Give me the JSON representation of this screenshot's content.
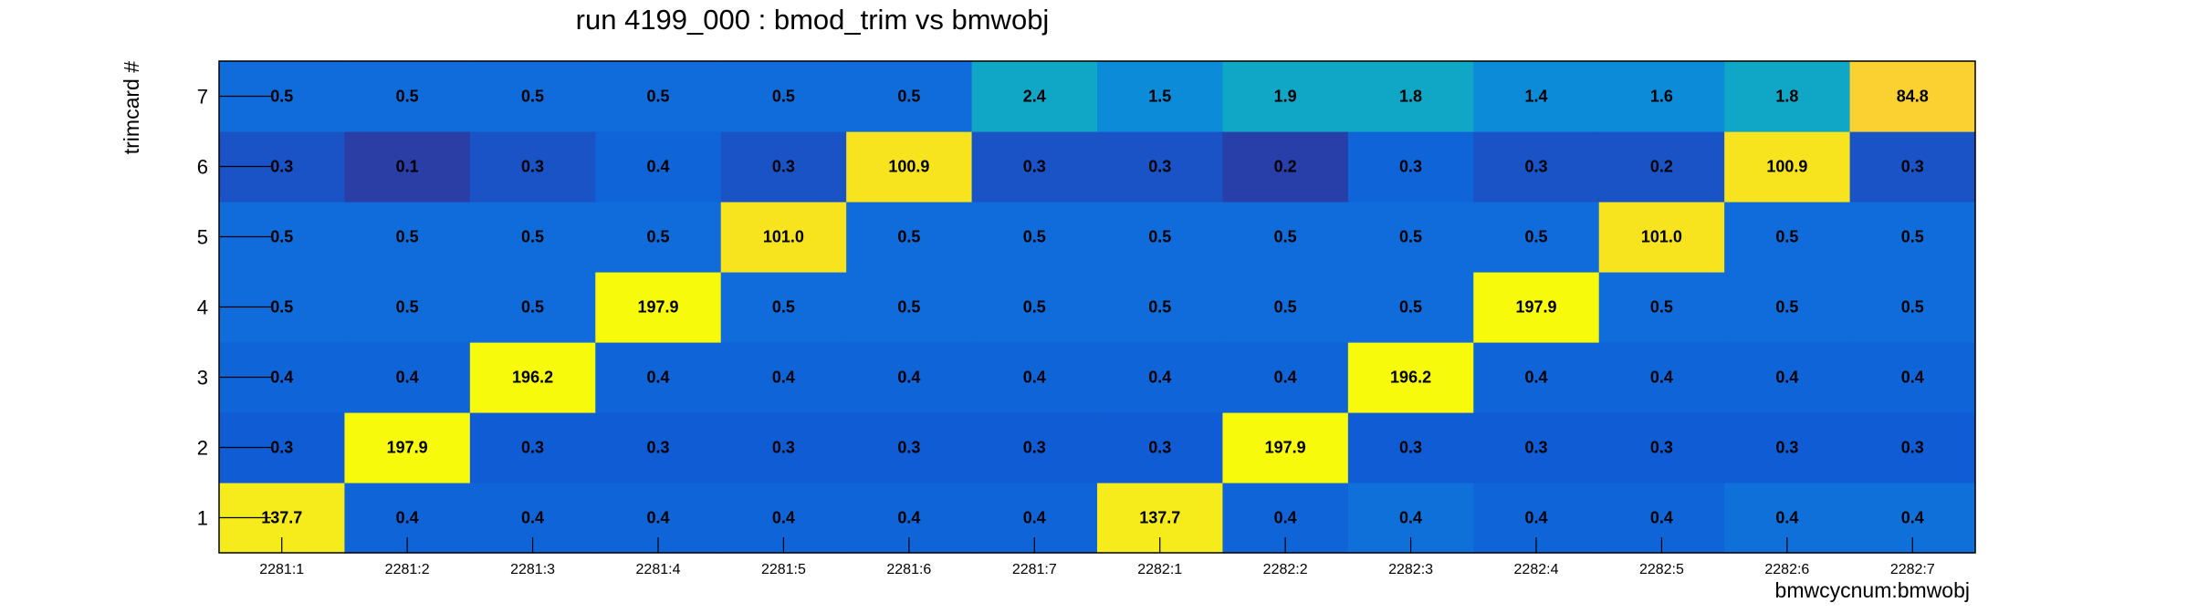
{
  "chart_data": {
    "type": "heatmap",
    "title": "run 4199_000 : bmod_trim vs bmwobj",
    "xlabel": "bmwcycnum:bmwobj",
    "ylabel": "trimcard #",
    "x_categories": [
      "2281:1",
      "2281:2",
      "2281:3",
      "2281:4",
      "2281:5",
      "2281:6",
      "2281:7",
      "2282:1",
      "2282:2",
      "2282:3",
      "2282:4",
      "2282:5",
      "2282:6",
      "2282:7"
    ],
    "y_categories": [
      "1",
      "2",
      "3",
      "4",
      "5",
      "6",
      "7"
    ],
    "values": [
      [
        137.7,
        0.4,
        0.4,
        0.4,
        0.4,
        0.4,
        0.4,
        137.7,
        0.4,
        0.4,
        0.4,
        0.4,
        0.4,
        0.4
      ],
      [
        0.3,
        197.9,
        0.3,
        0.3,
        0.3,
        0.3,
        0.3,
        0.3,
        197.9,
        0.3,
        0.3,
        0.3,
        0.3,
        0.3
      ],
      [
        0.4,
        0.4,
        196.2,
        0.4,
        0.4,
        0.4,
        0.4,
        0.4,
        0.4,
        196.2,
        0.4,
        0.4,
        0.4,
        0.4
      ],
      [
        0.5,
        0.5,
        0.5,
        197.9,
        0.5,
        0.5,
        0.5,
        0.5,
        0.5,
        0.5,
        197.9,
        0.5,
        0.5,
        0.5
      ],
      [
        0.5,
        0.5,
        0.5,
        0.5,
        101.0,
        0.5,
        0.5,
        0.5,
        0.5,
        0.5,
        0.5,
        101.0,
        0.5,
        0.5
      ],
      [
        0.3,
        0.1,
        0.3,
        0.4,
        0.3,
        100.9,
        0.3,
        0.3,
        0.2,
        0.3,
        0.3,
        0.2,
        100.9,
        0.3
      ],
      [
        0.5,
        0.5,
        0.5,
        0.5,
        0.5,
        0.5,
        2.4,
        1.5,
        1.9,
        1.8,
        1.4,
        1.6,
        1.8,
        84.8
      ]
    ],
    "value_labels": [
      [
        "137.7",
        "0.4",
        "0.4",
        "0.4",
        "0.4",
        "0.4",
        "0.4",
        "137.7",
        "0.4",
        "0.4",
        "0.4",
        "0.4",
        "0.4",
        "0.4"
      ],
      [
        "0.3",
        "197.9",
        "0.3",
        "0.3",
        "0.3",
        "0.3",
        "0.3",
        "0.3",
        "197.9",
        "0.3",
        "0.3",
        "0.3",
        "0.3",
        "0.3"
      ],
      [
        "0.4",
        "0.4",
        "196.2",
        "0.4",
        "0.4",
        "0.4",
        "0.4",
        "0.4",
        "0.4",
        "196.2",
        "0.4",
        "0.4",
        "0.4",
        "0.4"
      ],
      [
        "0.5",
        "0.5",
        "0.5",
        "197.9",
        "0.5",
        "0.5",
        "0.5",
        "0.5",
        "0.5",
        "0.5",
        "197.9",
        "0.5",
        "0.5",
        "0.5"
      ],
      [
        "0.5",
        "0.5",
        "0.5",
        "0.5",
        "101.0",
        "0.5",
        "0.5",
        "0.5",
        "0.5",
        "0.5",
        "0.5",
        "101.0",
        "0.5",
        "0.5"
      ],
      [
        "0.3",
        "0.1",
        "0.3",
        "0.4",
        "0.3",
        "100.9",
        "0.3",
        "0.3",
        "0.2",
        "0.3",
        "0.3",
        "0.2",
        "100.9",
        "0.3"
      ],
      [
        "0.5",
        "0.5",
        "0.5",
        "0.5",
        "0.5",
        "0.5",
        "2.4",
        "1.5",
        "1.9",
        "1.8",
        "1.4",
        "1.6",
        "1.8",
        "84.8"
      ]
    ],
    "cell_colors": [
      [
        "#f7ec1b",
        "#0f64d8",
        "#0f64d8",
        "#0f64d8",
        "#0f64d8",
        "#0f64d8",
        "#0f64d8",
        "#f7ec1b",
        "#0f64d8",
        "#1070da",
        "#0f64d8",
        "#0f64d8",
        "#1070da",
        "#1070da"
      ],
      [
        "#0f5cd4",
        "#f8fa0c",
        "#0f5cd4",
        "#0f5cd4",
        "#0f5cd4",
        "#0f5cd4",
        "#0f5cd4",
        "#0f5cd4",
        "#f8fa0c",
        "#0f5cd4",
        "#0f5cd4",
        "#0f5cd4",
        "#0f5cd4",
        "#0f5cd4"
      ],
      [
        "#0f64d8",
        "#0f64d8",
        "#f8fa0c",
        "#0f64d8",
        "#0f64d8",
        "#0f64d8",
        "#0f64d8",
        "#0f64d8",
        "#0f64d8",
        "#f8fa0c",
        "#0f64d8",
        "#0f64d8",
        "#0f64d8",
        "#0f64d8"
      ],
      [
        "#0f6cda",
        "#0f6cda",
        "#0f6cda",
        "#f8fa0c",
        "#0f6cda",
        "#0f6cda",
        "#0f6cda",
        "#0f6cda",
        "#0f6cda",
        "#0f6cda",
        "#f8fa0c",
        "#0f6cda",
        "#0f6cda",
        "#0f6cda"
      ],
      [
        "#0f6cda",
        "#0f6cda",
        "#0f6cda",
        "#0f6cda",
        "#f7e41f",
        "#0f6cda",
        "#0f6cda",
        "#0f6cda",
        "#0f6cda",
        "#0f6cda",
        "#0f6cda",
        "#f7e41f",
        "#0f6cda",
        "#0f6cda"
      ],
      [
        "#1953c6",
        "#2a3ea6",
        "#1953c6",
        "#0f64d8",
        "#1953c6",
        "#f7e41f",
        "#1953c6",
        "#1953c6",
        "#283ea8",
        "#0f64d8",
        "#1953c6",
        "#1953c6",
        "#f7e41f",
        "#1953c6"
      ],
      [
        "#0f6cda",
        "#0f6cda",
        "#0f6cda",
        "#0f6cda",
        "#0f6cda",
        "#0f6cda",
        "#10a6c6",
        "#0c8bd8",
        "#10a6c6",
        "#10a6c6",
        "#0c8bd8",
        "#0c8bd8",
        "#10a6c6",
        "#fbd131"
      ]
    ],
    "legend": "none",
    "grid": false
  }
}
